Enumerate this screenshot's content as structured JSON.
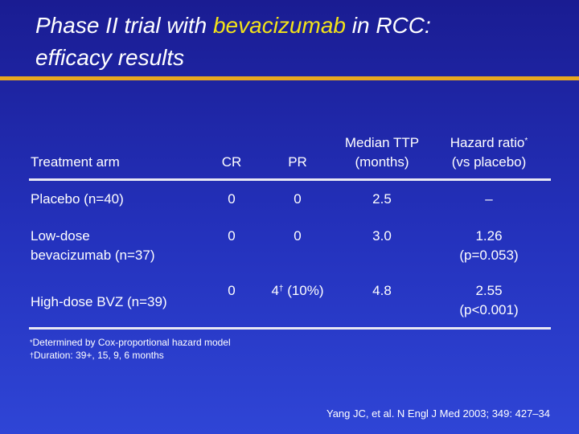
{
  "title": {
    "prefix": "Phase II trial with ",
    "highlight": "bevacizumab",
    "suffix": " in RCC:",
    "line2": "efficacy results"
  },
  "colors": {
    "background": "#2432bd",
    "highlight": "#f2e21a",
    "rule": "#e8a820"
  },
  "table": {
    "headers": {
      "arm": "Treatment arm",
      "cr": "CR",
      "pr": "PR",
      "ttp_line1": "Median TTP",
      "ttp_line2": "(months)",
      "hr_line1": "Hazard ratio",
      "hr_mark": "*",
      "hr_line2": "(vs placebo)"
    },
    "rows": [
      {
        "arm_line1": "Placebo (n=40)",
        "arm_line2": "",
        "cr": "0",
        "pr": "0",
        "pr_mark": "",
        "pr_suffix": "",
        "ttp": "2.5",
        "hr_line1": "–",
        "hr_line2": ""
      },
      {
        "arm_line1": "Low-dose",
        "arm_line2": "bevacizumab (n=37)",
        "cr": "0",
        "pr": "0",
        "pr_mark": "",
        "pr_suffix": "",
        "ttp": "3.0",
        "hr_line1": "1.26",
        "hr_line2": "(p=0.053)"
      },
      {
        "arm_line1": "High-dose BVZ  (n=39)",
        "arm_line2": "",
        "cr": "0",
        "pr": "4",
        "pr_mark": "†",
        "pr_suffix": " (10%)",
        "ttp": "4.8",
        "hr_line1": "2.55",
        "hr_line2": "(p<0.001)"
      }
    ]
  },
  "footnotes": [
    {
      "mark": "*",
      "text": "Determined by Cox-proportional hazard model"
    },
    {
      "mark": "†",
      "text": "Duration: 39+, 15, 9, 6 months"
    }
  ],
  "reference": "Yang JC, et al. N Engl J Med 2003; 349: 427–34"
}
